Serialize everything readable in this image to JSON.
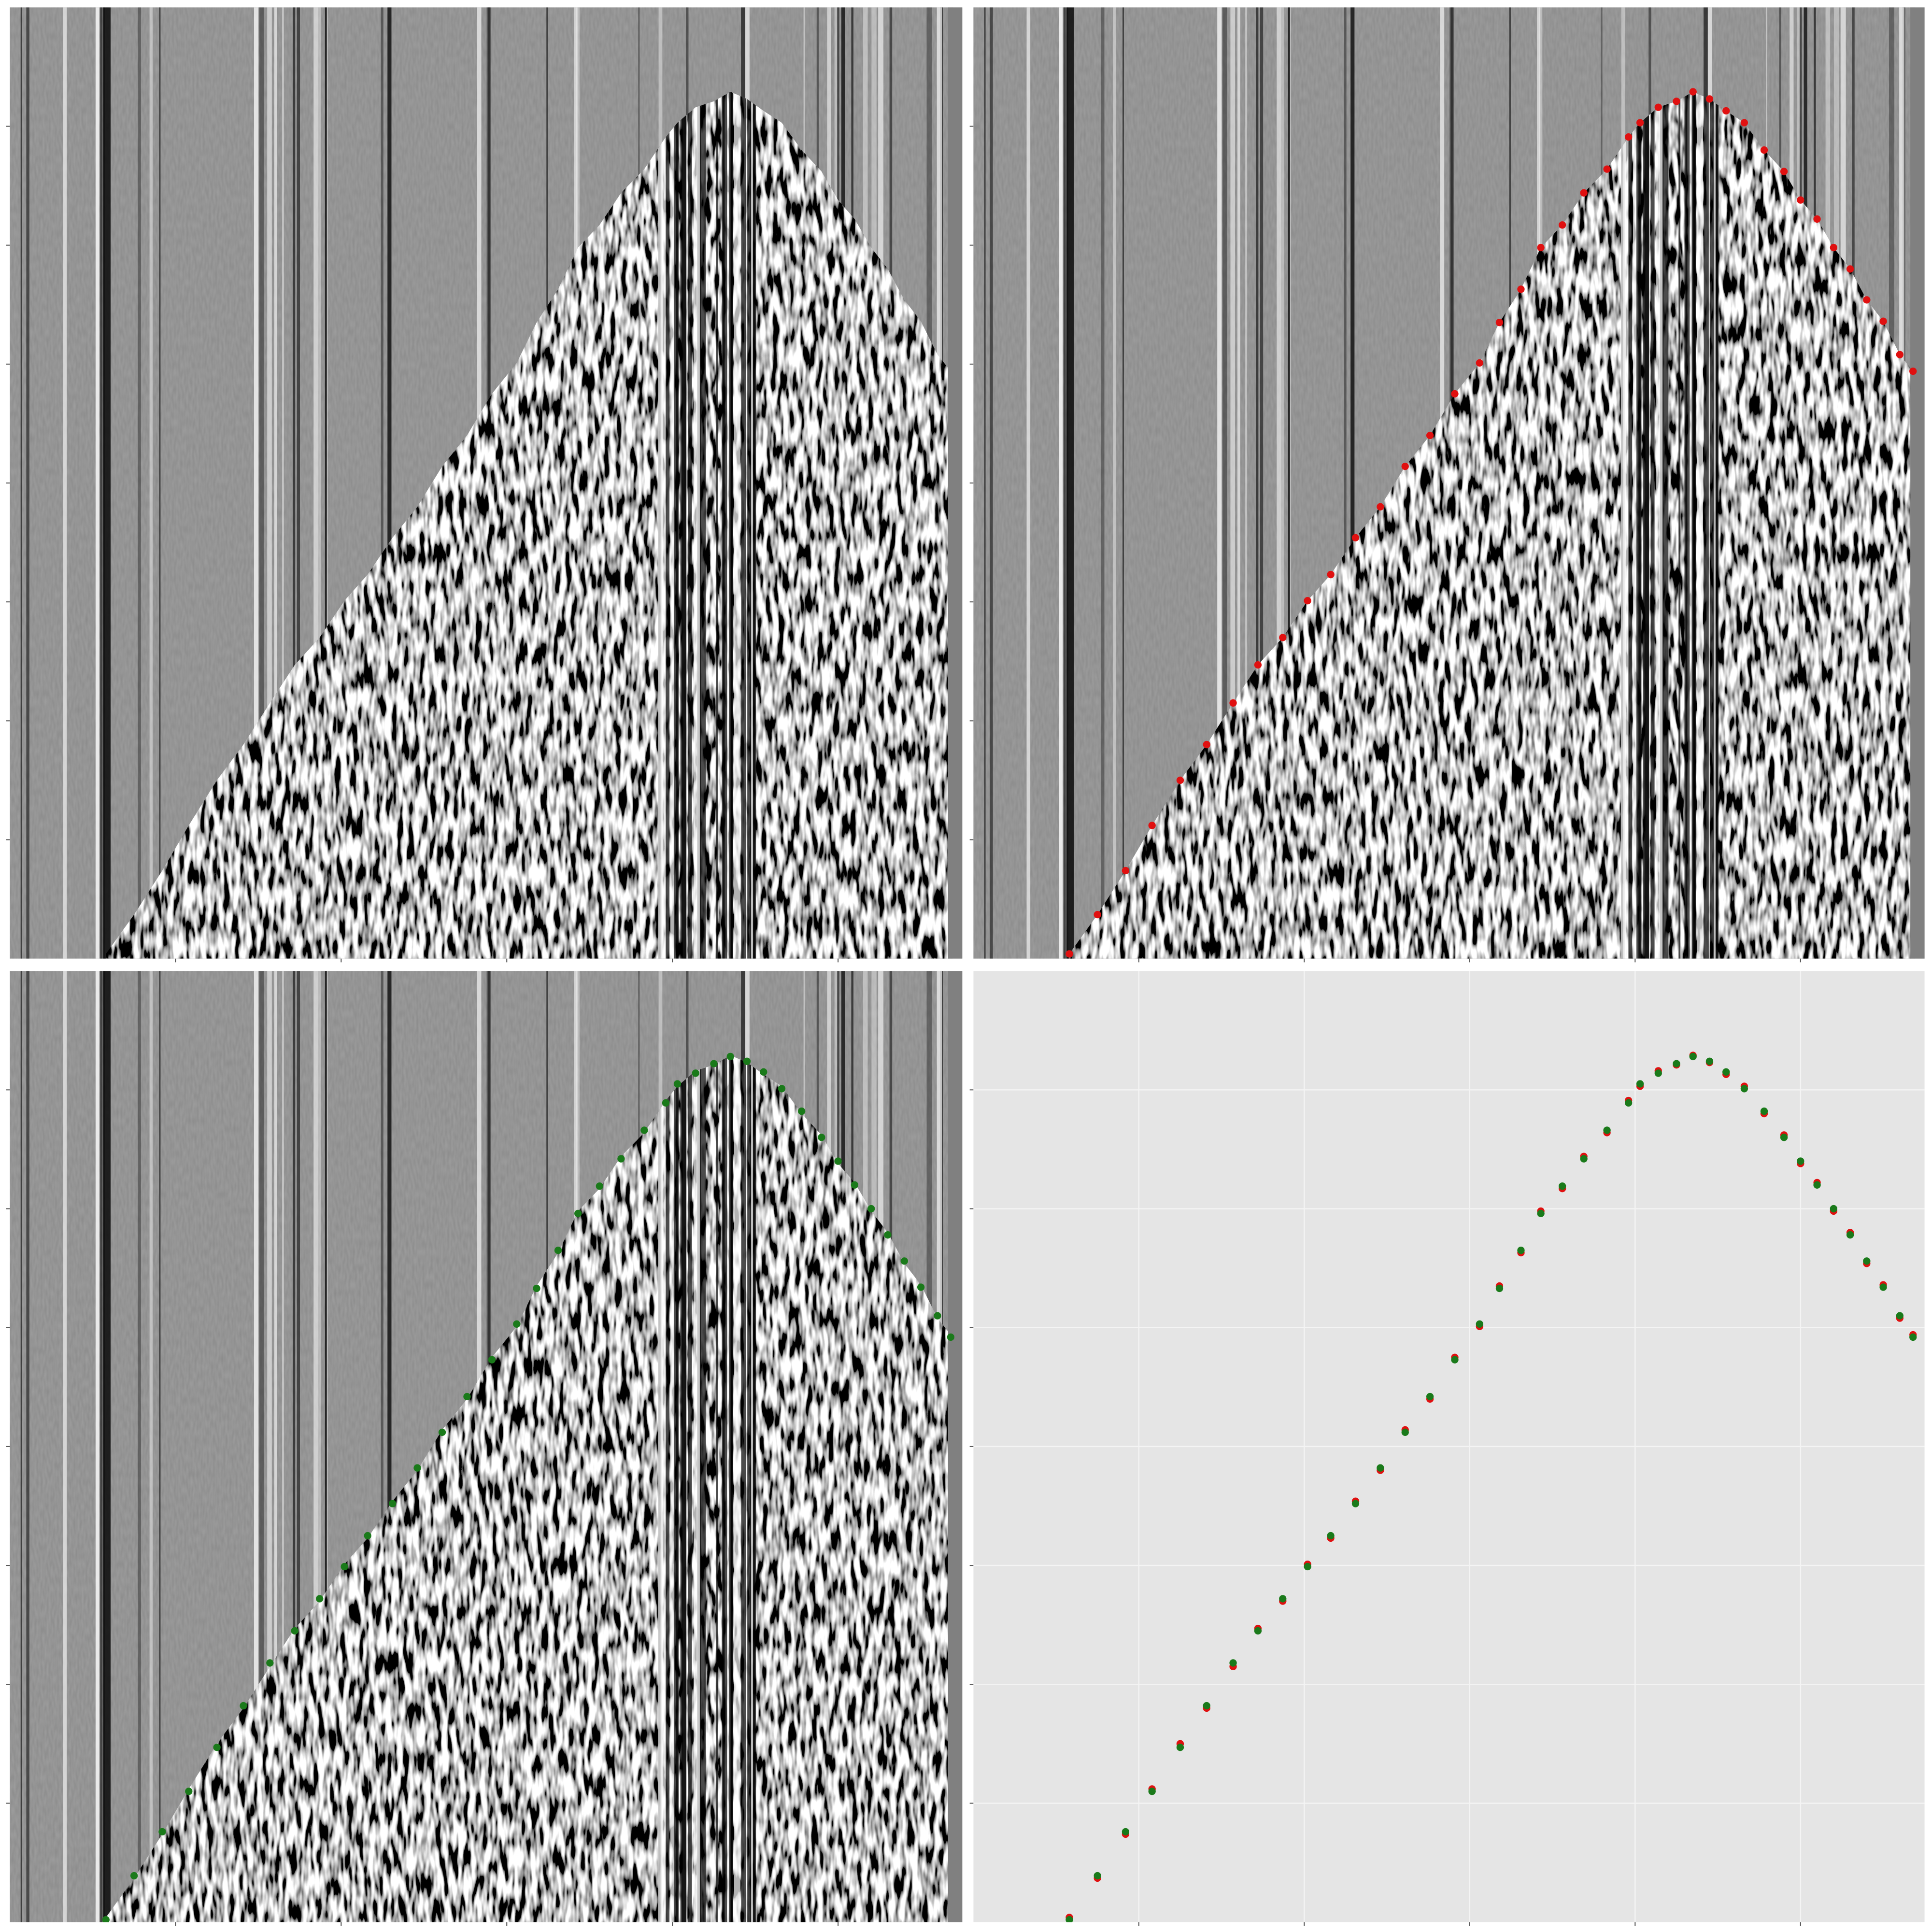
{
  "chart_data": [
    {
      "type": "seismic",
      "xlim": [
        0,
        575
      ],
      "ylim": [
        0,
        800
      ],
      "invert_y": true,
      "xticks": [
        100,
        200,
        300,
        400,
        500
      ],
      "yticks": [
        100,
        200,
        300,
        400,
        500,
        600,
        700
      ]
    },
    {
      "type": "scatter",
      "background": "seismic",
      "xlim": [
        0,
        575
      ],
      "ylim": [
        0,
        800
      ],
      "invert_y": true,
      "xticks": [
        100,
        200,
        300,
        400,
        500
      ],
      "yticks": [
        100,
        200,
        300,
        400,
        500,
        600,
        700
      ],
      "series": [
        {
          "color": "#e01010",
          "x": [
            58,
            75,
            92,
            108,
            125,
            141,
            157,
            172,
            187,
            202,
            216,
            231,
            246,
            261,
            276,
            291,
            306,
            318,
            331,
            343,
            356,
            369,
            383,
            396,
            403,
            414,
            425,
            435,
            445,
            455,
            466,
            478,
            490,
            500,
            510,
            520,
            530,
            540,
            550,
            560,
            568
          ],
          "values": [
            796,
            763,
            726,
            688,
            650,
            620,
            585,
            553,
            530,
            499,
            477,
            446,
            420,
            386,
            360,
            325,
            299,
            265,
            237,
            202,
            183,
            156,
            136,
            109,
            97,
            84,
            79,
            71,
            77,
            87,
            97,
            120,
            138,
            162,
            178,
            202,
            220,
            246,
            264,
            292,
            306
          ]
        }
      ]
    },
    {
      "type": "scatter",
      "background": "seismic",
      "xlim": [
        0,
        575
      ],
      "ylim": [
        0,
        800
      ],
      "invert_y": true,
      "xticks": [
        100,
        200,
        300,
        400,
        500
      ],
      "yticks": [
        100,
        200,
        300,
        400,
        500,
        600,
        700
      ],
      "series": [
        {
          "color": "#1a7a1a",
          "x": [
            58,
            75,
            92,
            108,
            125,
            141,
            157,
            172,
            187,
            202,
            216,
            231,
            246,
            261,
            276,
            291,
            306,
            318,
            331,
            343,
            356,
            369,
            383,
            396,
            403,
            414,
            425,
            435,
            445,
            455,
            466,
            478,
            490,
            500,
            510,
            520,
            530,
            540,
            550,
            560,
            568
          ],
          "values": [
            798,
            761,
            724,
            690,
            653,
            618,
            582,
            555,
            528,
            501,
            475,
            448,
            418,
            388,
            358,
            327,
            297,
            267,
            235,
            204,
            181,
            158,
            134,
            111,
            95,
            86,
            78,
            72,
            76,
            85,
            99,
            118,
            140,
            160,
            180,
            200,
            222,
            244,
            266,
            290,
            308
          ]
        }
      ]
    },
    {
      "type": "scatter",
      "background": "#e5e5e5",
      "grid": true,
      "xlim": [
        0,
        575
      ],
      "ylim": [
        0,
        800
      ],
      "invert_y": true,
      "xticks": [
        100,
        200,
        300,
        400,
        500
      ],
      "yticks": [
        100,
        200,
        300,
        400,
        500,
        600,
        700
      ],
      "series": [
        {
          "color": "#e01010",
          "x": [
            58,
            75,
            92,
            108,
            125,
            141,
            157,
            172,
            187,
            202,
            216,
            231,
            246,
            261,
            276,
            291,
            306,
            318,
            331,
            343,
            356,
            369,
            383,
            396,
            403,
            414,
            425,
            435,
            445,
            455,
            466,
            478,
            490,
            500,
            510,
            520,
            530,
            540,
            550,
            560,
            568
          ],
          "values": [
            796,
            763,
            726,
            688,
            650,
            620,
            585,
            553,
            530,
            499,
            477,
            446,
            420,
            386,
            360,
            325,
            299,
            265,
            237,
            202,
            183,
            156,
            136,
            109,
            97,
            84,
            79,
            71,
            77,
            87,
            97,
            120,
            138,
            162,
            178,
            202,
            220,
            246,
            264,
            292,
            306
          ]
        },
        {
          "color": "#1a7a1a",
          "x": [
            58,
            75,
            92,
            108,
            125,
            141,
            157,
            172,
            187,
            202,
            216,
            231,
            246,
            261,
            276,
            291,
            306,
            318,
            331,
            343,
            356,
            369,
            383,
            396,
            403,
            414,
            425,
            435,
            445,
            455,
            466,
            478,
            490,
            500,
            510,
            520,
            530,
            540,
            550,
            560,
            568
          ],
          "values": [
            798,
            761,
            724,
            690,
            653,
            618,
            582,
            555,
            528,
            501,
            475,
            448,
            418,
            388,
            358,
            327,
            297,
            267,
            235,
            204,
            181,
            158,
            134,
            111,
            95,
            86,
            78,
            72,
            76,
            85,
            99,
            118,
            140,
            160,
            180,
            200,
            222,
            244,
            266,
            290,
            308
          ]
        }
      ]
    }
  ]
}
